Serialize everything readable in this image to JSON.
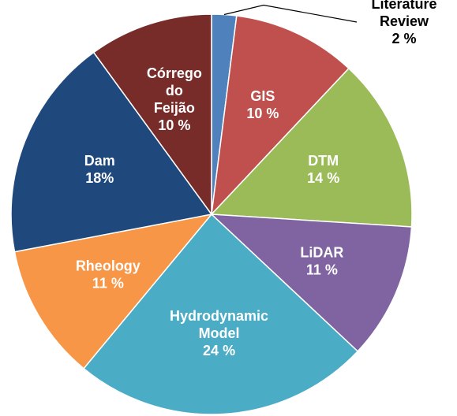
{
  "chart_data": {
    "type": "pie",
    "categories": [
      "Literature Review",
      "GIS",
      "DTM",
      "LiDAR",
      "Hydrodynamic Model",
      "Rheology",
      "Dam",
      "Córrego do Feijão"
    ],
    "values": [
      2,
      10,
      14,
      11,
      24,
      11,
      18,
      10
    ],
    "value_labels": [
      "2 %",
      "10 %",
      "14 %",
      "11 %",
      "24 %",
      "11 %",
      "18%",
      "10 %"
    ],
    "colors": [
      "#4f81bd",
      "#c0504d",
      "#9bbb59",
      "#8064a2",
      "#4bacc6",
      "#f79646",
      "#1f497d",
      "#772c2a"
    ]
  }
}
